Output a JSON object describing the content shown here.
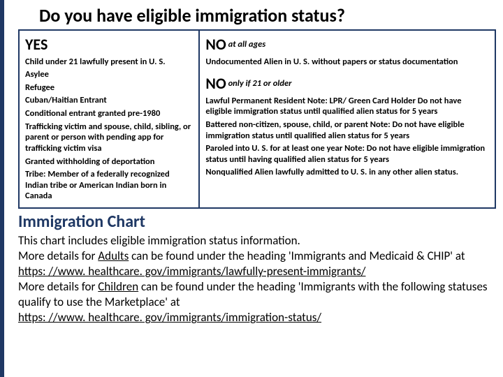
{
  "colors": {
    "accent_border": "#1f3864",
    "heading_color": "#1f3864",
    "background": "#ffffff",
    "text": "#000000"
  },
  "title": "Do you have eligible immigration status?",
  "yes": {
    "label": "YES",
    "items": [
      "Child under 21 lawfully present in U. S.",
      "Asylee",
      "Refugee",
      "Cuban/Haitian Entrant",
      "Conditional entrant granted pre-1980",
      "Trafficking victim and spouse, child, sibling, or parent or person with pending app for trafficking victim visa",
      "Granted withholding of deportation",
      "Tribe: Member of a federally recognized Indian tribe or American Indian born in Canada"
    ]
  },
  "no_all": {
    "label": "NO",
    "qualifier": "at all ages",
    "items": [
      "Undocumented Alien in U. S. without papers or status documentation"
    ]
  },
  "no_21": {
    "label": "NO",
    "qualifier": "only if 21 or older",
    "items": [
      "Lawful Permanent Resident  Note:  LPR/ Green Card Holder  Do not have eligible immigration status until qualified alien status for 5 years",
      "Battered non-citizen, spouse, child, or parent  Note:  Do not have eligible immigration status until qualified alien status for 5 years",
      "Paroled into U. S. for at least one year  Note: Do not have eligible immigration status  until having qualified alien status for 5 years",
      "Nonqualified Alien lawfully admitted to U. S. in any other alien status."
    ]
  },
  "subheading": "Immigration Chart",
  "body": {
    "intro": "This chart includes eligible immigration status information.",
    "adults_prefix": "More details for ",
    "adults_word": "Adults",
    "adults_mid": " can be found under the heading 'Immigrants and Medicaid & CHIP' at ",
    "adults_link": "https: //www. healthcare. gov/immigrants/lawfully-present-immigrants/",
    "children_prefix": "More details for ",
    "children_word": "Children",
    "children_mid": " can be found under the heading 'Immigrants with the following statuses qualify to use the Marketplace' at",
    "children_link": "https: //www. healthcare. gov/immigrants/immigration-status/"
  }
}
